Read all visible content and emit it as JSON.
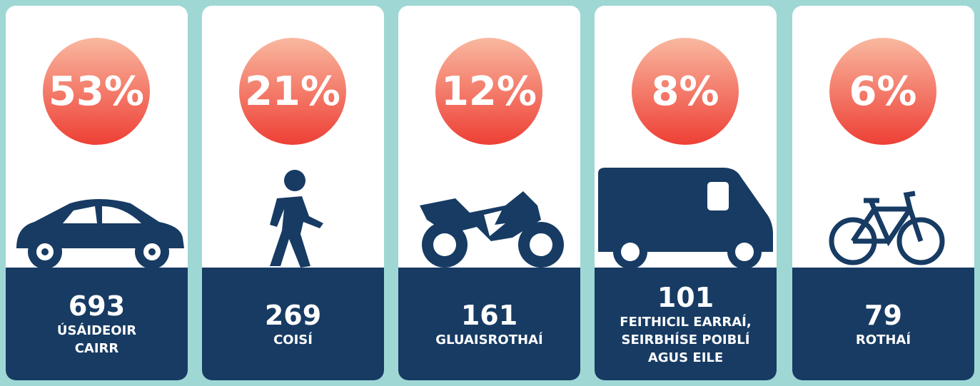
{
  "cards": [
    {
      "percent": "53%",
      "count": "693",
      "label": [
        "ÚSÁIDEOIR",
        "CAIRR"
      ]
    },
    {
      "percent": "21%",
      "count": "269",
      "label": [
        "COISÍ"
      ]
    },
    {
      "percent": "12%",
      "count": "161",
      "label": [
        "GLUAISROTHAÍ"
      ]
    },
    {
      "percent": "8%",
      "count": "101",
      "label": [
        "FEITHICIL EARRAÍ,",
        "SEIRBHÍSE POIBLÍ",
        "AGUS EILE"
      ]
    },
    {
      "percent": "6%",
      "count": "79",
      "label": [
        "ROTHAÍ"
      ]
    }
  ]
}
